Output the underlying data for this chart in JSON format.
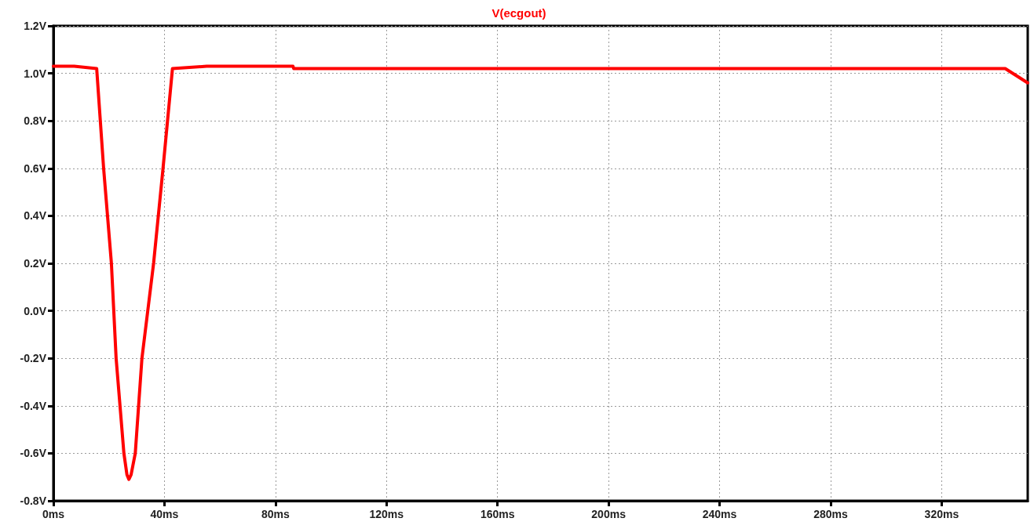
{
  "chart_data": {
    "type": "line",
    "x": [
      0,
      7.5,
      15.6,
      18.1,
      20.9,
      22.6,
      25.4,
      26.5,
      27.2,
      28.0,
      29.5,
      31.9,
      36.1,
      39.5,
      42.9,
      55.2,
      86.3,
      86.6,
      342.9,
      351
    ],
    "series": [
      {
        "name": "V(ecgout)",
        "color": "#ff0000",
        "values": [
          1.03,
          1.03,
          1.02,
          0.6,
          0.2,
          -0.2,
          -0.6,
          -0.69,
          -0.71,
          -0.69,
          -0.6,
          -0.2,
          0.2,
          0.6,
          1.02,
          1.03,
          1.03,
          1.02,
          1.02,
          0.96
        ]
      }
    ],
    "xlim": [
      0,
      351
    ],
    "xticks": [
      {
        "value": 0,
        "label": "0ms"
      },
      {
        "value": 40,
        "label": "40ms"
      },
      {
        "value": 80,
        "label": "80ms"
      },
      {
        "value": 120,
        "label": "120ms"
      },
      {
        "value": 160,
        "label": "160ms"
      },
      {
        "value": 200,
        "label": "200ms"
      },
      {
        "value": 240,
        "label": "240ms"
      },
      {
        "value": 280,
        "label": "280ms"
      },
      {
        "value": 320,
        "label": "320ms"
      }
    ],
    "ylim": [
      -0.8,
      1.2
    ],
    "yticks": [
      {
        "value": -0.8,
        "label": "-0.8V"
      },
      {
        "value": -0.6,
        "label": "-0.6V"
      },
      {
        "value": -0.4,
        "label": "-0.4V"
      },
      {
        "value": -0.2,
        "label": "-0.2V"
      },
      {
        "value": 0,
        "label": "0.0V"
      },
      {
        "value": 0.2,
        "label": "0.2V"
      },
      {
        "value": 0.4,
        "label": "0.4V"
      },
      {
        "value": 0.6,
        "label": "0.6V"
      },
      {
        "value": 0.8,
        "label": "0.8V"
      },
      {
        "value": 1.0,
        "label": "1.0V"
      },
      {
        "value": 1.2,
        "label": "1.2V"
      }
    ],
    "grid": true,
    "legend": "top",
    "marker": "none",
    "line_style": "solid"
  }
}
